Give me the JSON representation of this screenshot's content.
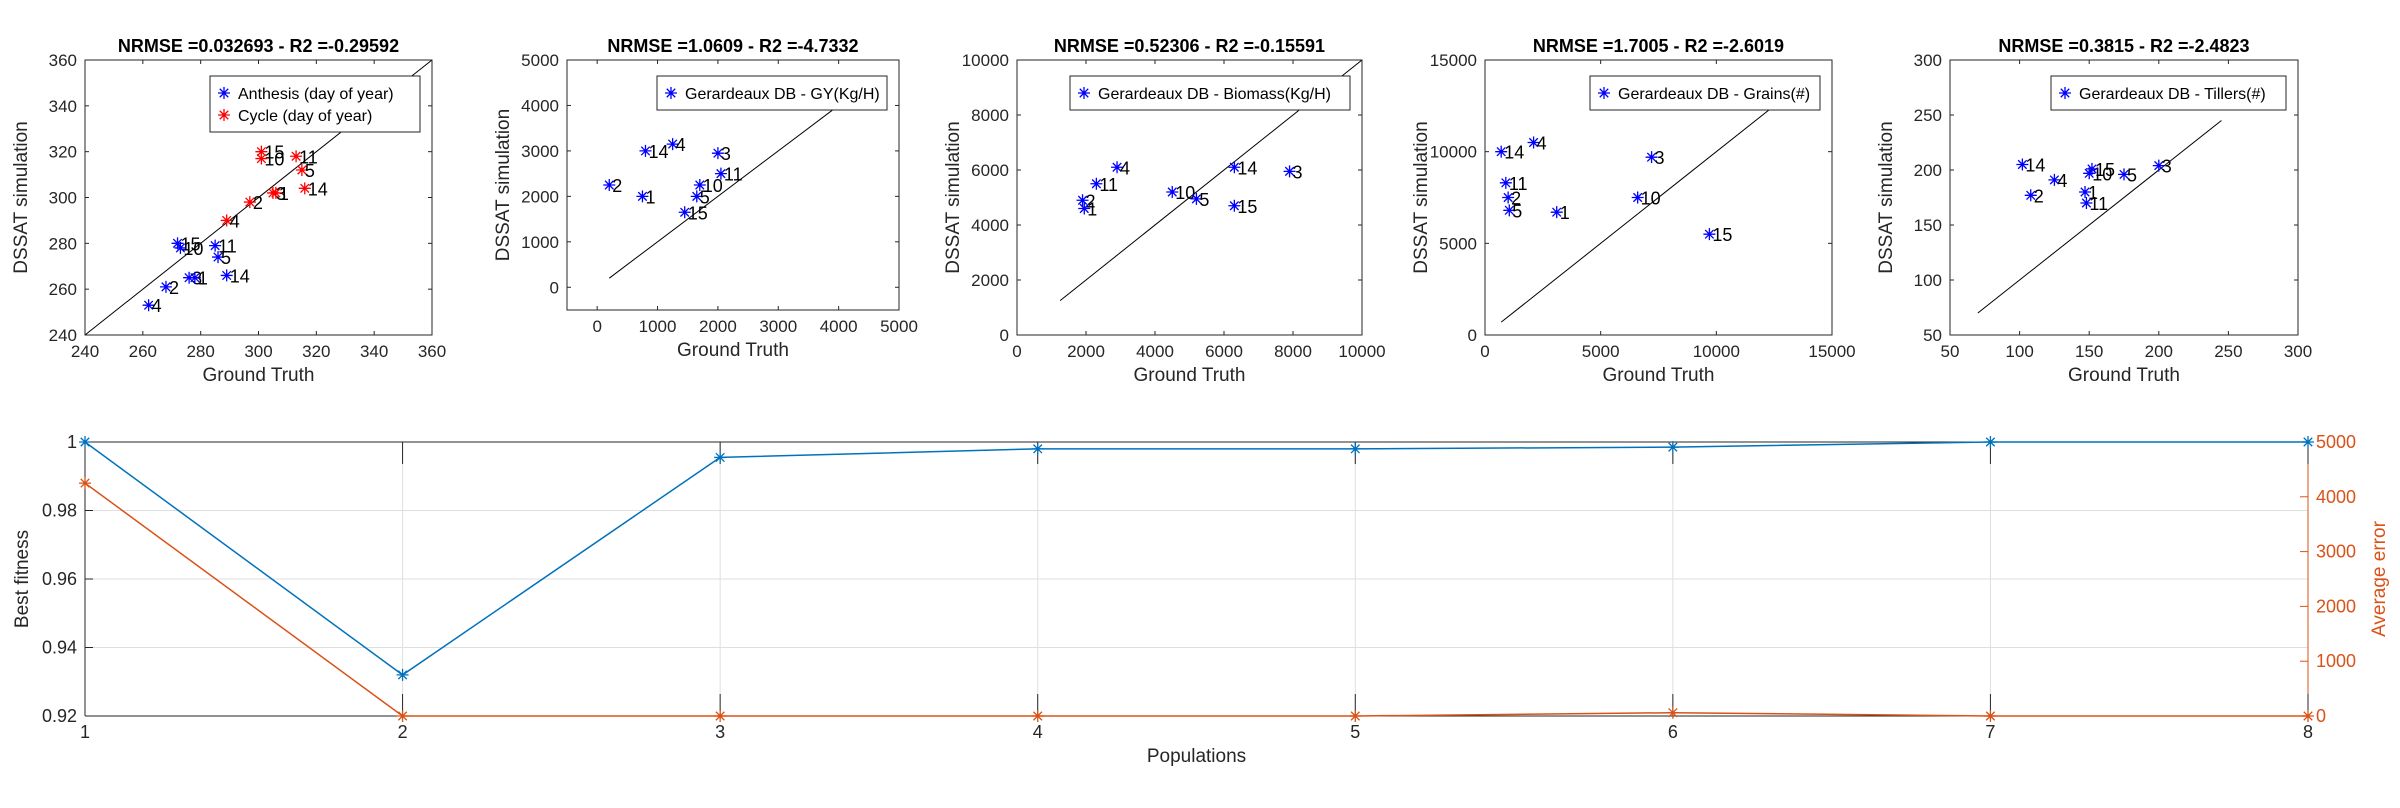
{
  "chart_data": [
    {
      "type": "scatter",
      "title": "NRMSE =0.032693 - R2 =-0.29592",
      "xlabel": "Ground Truth",
      "ylabel": "DSSAT simulation",
      "xlim": [
        240,
        360
      ],
      "ylim": [
        240,
        360
      ],
      "xticks": [
        "240",
        "260",
        "280",
        "300",
        "320",
        "340",
        "360"
      ],
      "yticks": [
        "240",
        "260",
        "280",
        "300",
        "320",
        "340",
        "360"
      ],
      "identity_line": true,
      "legend_position": "top-right",
      "series": [
        {
          "name": "Anthesis  (day of year)",
          "color": "#0000ff",
          "points": [
            {
              "x": 262,
              "y": 253,
              "label": "4"
            },
            {
              "x": 268,
              "y": 261,
              "label": "2"
            },
            {
              "x": 272,
              "y": 280,
              "label": "15"
            },
            {
              "x": 273,
              "y": 278,
              "label": "10"
            },
            {
              "x": 276,
              "y": 265,
              "label": "3"
            },
            {
              "x": 278,
              "y": 265,
              "label": "1"
            },
            {
              "x": 285,
              "y": 279,
              "label": "11"
            },
            {
              "x": 286,
              "y": 274,
              "label": "5"
            },
            {
              "x": 289,
              "y": 266,
              "label": "14"
            }
          ]
        },
        {
          "name": "Cycle  (day of year)",
          "color": "#ff0000",
          "points": [
            {
              "x": 289,
              "y": 290,
              "label": "4"
            },
            {
              "x": 297,
              "y": 298,
              "label": "2"
            },
            {
              "x": 301,
              "y": 320,
              "label": "15"
            },
            {
              "x": 301,
              "y": 317,
              "label": "10"
            },
            {
              "x": 305,
              "y": 302,
              "label": "3"
            },
            {
              "x": 306,
              "y": 302,
              "label": "1"
            },
            {
              "x": 313,
              "y": 318,
              "label": "11"
            },
            {
              "x": 315,
              "y": 312,
              "label": "5"
            },
            {
              "x": 316,
              "y": 304,
              "label": "14"
            }
          ]
        }
      ]
    },
    {
      "type": "scatter",
      "title": "NRMSE =1.0609 - R2 =-4.7332",
      "xlabel": "Ground Truth",
      "ylabel": "DSSAT simulation",
      "xlim": [
        -500,
        5000
      ],
      "ylim": [
        -500,
        5000
      ],
      "xticks": [
        "0",
        "1000",
        "2000",
        "3000",
        "4000",
        "5000"
      ],
      "yticks": [
        "0",
        "1000",
        "2000",
        "3000",
        "4000",
        "5000"
      ],
      "identity_line": true,
      "legend_position": "top-right",
      "series": [
        {
          "name": "Gerardeaux DB - GY(Kg/H)",
          "color": "#0000ff",
          "points": [
            {
              "x": 200,
              "y": 2250,
              "label": "2"
            },
            {
              "x": 750,
              "y": 2000,
              "label": "1"
            },
            {
              "x": 800,
              "y": 3000,
              "label": "14"
            },
            {
              "x": 1250,
              "y": 3150,
              "label": "4"
            },
            {
              "x": 1450,
              "y": 1650,
              "label": "15"
            },
            {
              "x": 1650,
              "y": 2000,
              "label": "5"
            },
            {
              "x": 1700,
              "y": 2250,
              "label": "10"
            },
            {
              "x": 2000,
              "y": 2950,
              "label": "3"
            },
            {
              "x": 2050,
              "y": 2500,
              "label": "11"
            }
          ]
        }
      ]
    },
    {
      "type": "scatter",
      "title": "NRMSE =0.52306 - R2 =-0.15591",
      "xlabel": "Ground Truth",
      "ylabel": "DSSAT simulation",
      "xlim": [
        0,
        10000
      ],
      "ylim": [
        0,
        10000
      ],
      "xticks": [
        "0",
        "2000",
        "4000",
        "6000",
        "8000",
        "10000"
      ],
      "yticks": [
        "0",
        "2000",
        "4000",
        "6000",
        "8000",
        "10000"
      ],
      "identity_line": true,
      "legend_position": "top-right",
      "series": [
        {
          "name": "Gerardeaux DB - Biomass(Kg/H)",
          "color": "#0000ff",
          "points": [
            {
              "x": 1900,
              "y": 4900,
              "label": "2"
            },
            {
              "x": 1950,
              "y": 4600,
              "label": "1"
            },
            {
              "x": 2300,
              "y": 5500,
              "label": "11"
            },
            {
              "x": 2900,
              "y": 6100,
              "label": "4"
            },
            {
              "x": 4500,
              "y": 5200,
              "label": "10"
            },
            {
              "x": 5200,
              "y": 4950,
              "label": "5"
            },
            {
              "x": 6300,
              "y": 6100,
              "label": "14"
            },
            {
              "x": 6300,
              "y": 4700,
              "label": "15"
            },
            {
              "x": 7900,
              "y": 5950,
              "label": "3"
            }
          ]
        }
      ]
    },
    {
      "type": "scatter",
      "title": "NRMSE =1.7005 - R2 =-2.6019",
      "xlabel": "Ground Truth",
      "ylabel": "DSSAT simulation",
      "xlim": [
        0,
        15000
      ],
      "ylim": [
        0,
        15000
      ],
      "xticks": [
        "0",
        "5000",
        "10000",
        "15000"
      ],
      "yticks": [
        "0",
        "5000",
        "10000",
        "15000"
      ],
      "identity_line": true,
      "legend_position": "top-right",
      "series": [
        {
          "name": "Gerardeaux DB - Grains(#)",
          "color": "#0000ff",
          "points": [
            {
              "x": 700,
              "y": 10000,
              "label": "14"
            },
            {
              "x": 900,
              "y": 8300,
              "label": "11"
            },
            {
              "x": 1000,
              "y": 7500,
              "label": "2"
            },
            {
              "x": 1050,
              "y": 6800,
              "label": "5"
            },
            {
              "x": 3100,
              "y": 6700,
              "label": "1"
            },
            {
              "x": 2100,
              "y": 10500,
              "label": "4"
            },
            {
              "x": 6600,
              "y": 7500,
              "label": "10"
            },
            {
              "x": 7200,
              "y": 9700,
              "label": "3"
            },
            {
              "x": 9700,
              "y": 5500,
              "label": "15"
            }
          ]
        }
      ]
    },
    {
      "type": "scatter",
      "title": "NRMSE =0.3815 - R2 =-2.4823",
      "xlabel": "Ground Truth",
      "ylabel": "DSSAT simulation",
      "xlim": [
        50,
        300
      ],
      "ylim": [
        50,
        300
      ],
      "xticks": [
        "50",
        "100",
        "150",
        "200",
        "250",
        "300"
      ],
      "yticks": [
        "50",
        "100",
        "150",
        "200",
        "250",
        "300"
      ],
      "identity_line": true,
      "legend_position": "top-right",
      "series": [
        {
          "name": "Gerardeaux DB - Tillers(#)",
          "color": "#0000ff",
          "points": [
            {
              "x": 102,
              "y": 205,
              "label": "14"
            },
            {
              "x": 108,
              "y": 177,
              "label": "2"
            },
            {
              "x": 125,
              "y": 191,
              "label": "4"
            },
            {
              "x": 147,
              "y": 180,
              "label": "1"
            },
            {
              "x": 148,
              "y": 170,
              "label": "11"
            },
            {
              "x": 150,
              "y": 197,
              "label": "10"
            },
            {
              "x": 152,
              "y": 201,
              "label": "15"
            },
            {
              "x": 175,
              "y": 196,
              "label": "5"
            },
            {
              "x": 200,
              "y": 204,
              "label": "3"
            }
          ]
        }
      ]
    },
    {
      "type": "line",
      "title": "",
      "xlabel": "Populations",
      "ylabel": "Best fitness",
      "ylabel_right": "Average error",
      "xlim": [
        1,
        8
      ],
      "ylim": [
        0.92,
        1
      ],
      "ylim_right": [
        0,
        5000
      ],
      "xticks": [
        "1",
        "2",
        "3",
        "4",
        "5",
        "6",
        "7",
        "8"
      ],
      "yticks": [
        "0.92",
        "0.94",
        "0.96",
        "0.98",
        "1"
      ],
      "yticks_right": [
        "0",
        "1000",
        "2000",
        "3000",
        "4000",
        "5000"
      ],
      "grid": true,
      "x": [
        1,
        2,
        3,
        4,
        5,
        6,
        7,
        8
      ],
      "series": [
        {
          "name": "Best fitness",
          "axis": "left",
          "color": "#0072bd",
          "values": [
            1,
            0.932,
            0.9955,
            0.998,
            0.998,
            0.9985,
            1,
            1
          ]
        },
        {
          "name": "Average error",
          "axis": "right",
          "color": "#d95319",
          "values": [
            4250,
            0,
            0,
            0,
            0,
            60,
            0,
            0
          ]
        }
      ]
    }
  ]
}
